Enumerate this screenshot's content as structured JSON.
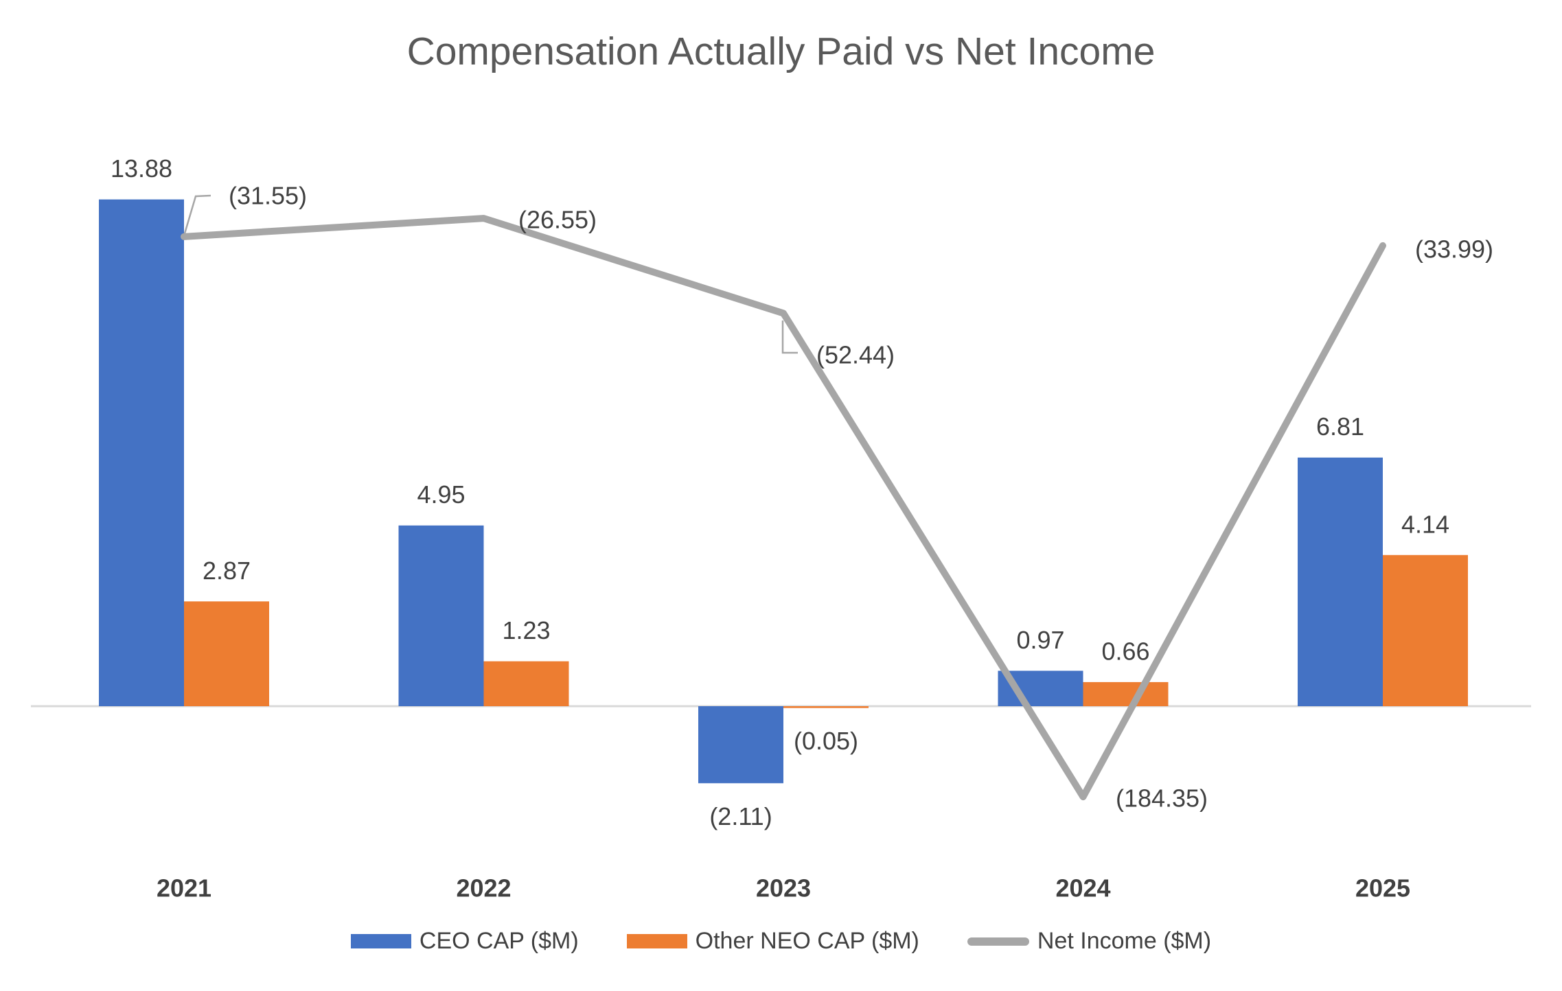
{
  "title": "Compensation Actually Paid vs Net Income",
  "chart_data": {
    "type": "combo-bar-line",
    "title": "Compensation Actually Paid vs Net Income",
    "categories": [
      "2021",
      "2022",
      "2023",
      "2024",
      "2025"
    ],
    "series": [
      {
        "name": "CEO CAP ($M)",
        "type": "bar",
        "color": "#4472C4",
        "values": [
          13.88,
          4.95,
          -2.11,
          0.97,
          6.81
        ],
        "labels": [
          "13.88",
          "4.95",
          "(2.11)",
          "0.97",
          "6.81"
        ]
      },
      {
        "name": "Other NEO CAP ($M)",
        "type": "bar",
        "color": "#ED7D31",
        "values": [
          2.87,
          1.23,
          -0.05,
          0.66,
          4.14
        ],
        "labels": [
          "2.87",
          "1.23",
          "(0.05)",
          "0.66",
          "4.14"
        ]
      },
      {
        "name": "Net Income ($M)",
        "type": "line",
        "color": "#A6A6A6",
        "values": [
          -31.55,
          -26.55,
          -52.44,
          -184.35,
          -33.99
        ],
        "labels": [
          "(31.55)",
          "(26.55)",
          "(52.44)",
          "(184.35)",
          "(33.99)"
        ]
      }
    ],
    "xlabel": "",
    "ylabel": "",
    "gridlines": false,
    "y_axis_visible": false,
    "x_axis_line_visible": true,
    "legend_position": "bottom",
    "negative_number_format": "parentheses",
    "title_color": "#595959",
    "data_label_color": "#404040",
    "axis_label_color": "#404040",
    "axis_line_color": "#D9D9D9",
    "background_color": "#FFFFFF"
  }
}
